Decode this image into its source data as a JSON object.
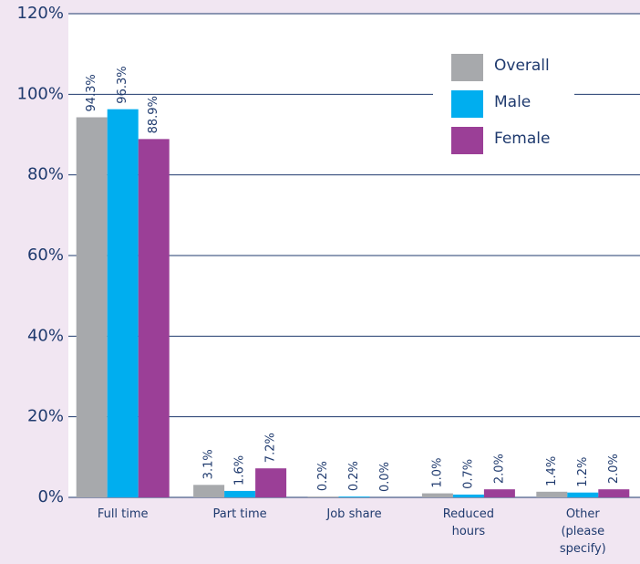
{
  "chart_data": {
    "type": "bar",
    "categories": [
      "Full time",
      "Part time",
      "Job share",
      "Reduced hours",
      "Other (please specify)"
    ],
    "series": [
      {
        "name": "Overall",
        "color": "#a7a9ac",
        "values": [
          94.3,
          3.1,
          0.2,
          1.0,
          1.4
        ],
        "value_labels": [
          "94.3%",
          "3.1%",
          "0.2%",
          "1.0%",
          "1.4%"
        ]
      },
      {
        "name": "Male",
        "color": "#00aeef",
        "values": [
          96.3,
          1.6,
          0.2,
          0.7,
          1.2
        ],
        "value_labels": [
          "96.3%",
          "1.6%",
          "0.2%",
          "0.7%",
          "1.2%"
        ]
      },
      {
        "name": "Female",
        "color": "#9b3f97",
        "values": [
          88.9,
          7.2,
          0.0,
          2.0,
          2.0
        ],
        "value_labels": [
          "88.9%",
          "7.2%",
          "0.0%",
          "2.0%",
          "2.0%"
        ]
      }
    ],
    "ylim": [
      0,
      120
    ],
    "yticks": [
      {
        "value": 0,
        "label": "0%"
      },
      {
        "value": 20,
        "label": "20%"
      },
      {
        "value": 40,
        "label": "40%"
      },
      {
        "value": 60,
        "label": "60%"
      },
      {
        "value": 80,
        "label": "80%"
      },
      {
        "value": 100,
        "label": "100%"
      },
      {
        "value": 120,
        "label": "120%"
      }
    ],
    "grid": true,
    "legend": "upper right"
  }
}
